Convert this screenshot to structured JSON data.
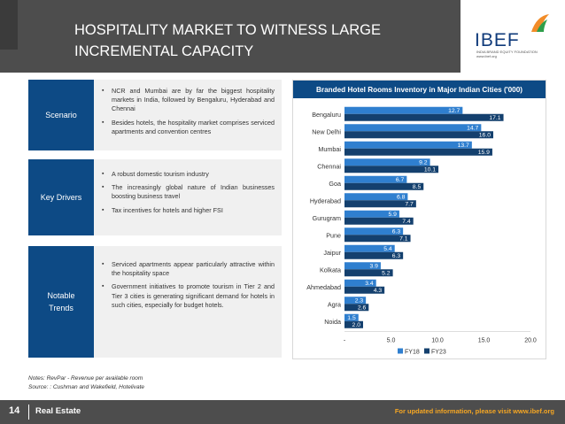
{
  "header": {
    "title": "HOSPITALITY MARKET TO WITNESS LARGE INCREMENTAL CAPACITY",
    "logo_text": "IBEF",
    "logo_tagline": "INDIA BRAND EQUITY FOUNDATION www.ibef.org"
  },
  "panels": [
    {
      "label": "Scenario",
      "bullets": [
        "NCR and Mumbai are by far the biggest hospitality markets in India, followed by Bengaluru, Hyderabad and Chennai",
        "Besides hotels, the hospitality market comprises serviced apartments and convention centres"
      ]
    },
    {
      "label": "Key Drivers",
      "bullets": [
        "A robust domestic tourism industry",
        "The increasingly global nature of Indian businesses boosting business travel",
        "Tax incentives for hotels and higher FSI"
      ]
    },
    {
      "label": "Notable Trends",
      "bullets": [
        "Serviced apartments appear particularly attractive within the hospitality space",
        "Government initiatives to promote tourism in Tier 2 and Tier 3 cities is generating significant demand for hotels in such cities, especially for budget hotels."
      ]
    }
  ],
  "chart_data": {
    "type": "bar",
    "orientation": "horizontal",
    "title": "Branded Hotel Rooms Inventory in Major Indian Cities ('000)",
    "categories": [
      "Bengaluru",
      "New Delhi",
      "Mumbai",
      "Chennai",
      "Goa",
      "Hyderabad",
      "Gurugram",
      "Pune",
      "Jaipur",
      "Kolkata",
      "Ahmedabad",
      "Agra",
      "Noida"
    ],
    "series": [
      {
        "name": "FY18",
        "color": "#2f7fcf",
        "values": [
          12.7,
          14.7,
          13.7,
          9.2,
          6.7,
          6.8,
          5.9,
          6.3,
          5.4,
          3.9,
          3.4,
          2.3,
          1.5
        ]
      },
      {
        "name": "FY23",
        "color": "#14406e",
        "values": [
          17.1,
          16.0,
          15.9,
          10.1,
          8.5,
          7.7,
          7.4,
          7.1,
          6.3,
          5.2,
          4.3,
          2.6,
          2.0
        ]
      }
    ],
    "xlim": [
      0,
      20
    ],
    "xticks": [
      "-",
      "5.0",
      "10.0",
      "15.0",
      "20.0"
    ],
    "xtick_values": [
      0,
      5,
      10,
      15,
      20
    ],
    "legend_position": "bottom",
    "grid": false
  },
  "notes": "Notes: RevPar - Revenue per available room",
  "source": "Source: : Cushman and Wakefield, Hotelivate",
  "footer": {
    "page": "14",
    "section": "Real Estate",
    "right_text": "For updated information, please visit www.ibef.org"
  },
  "colors": {
    "header_bg": "#4d4d4d",
    "panel_label_bg": "#0d4a85",
    "footer_link": "#f5a623"
  }
}
